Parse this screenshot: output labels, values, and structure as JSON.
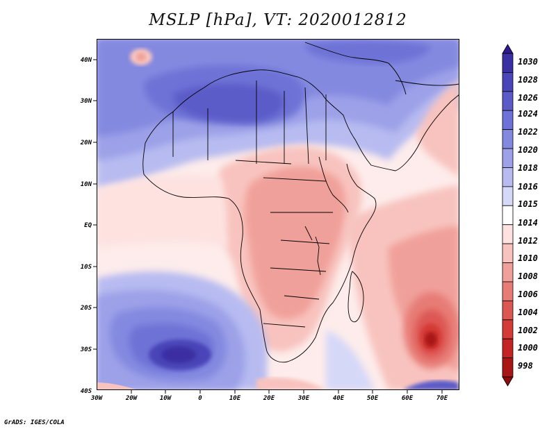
{
  "title": "MSLP [hPa], VT: 2020012812",
  "credit": "GrADS: IGES/COLA",
  "lat_labels": [
    "40N",
    "30N",
    "20N",
    "10N",
    "EQ",
    "10S",
    "20S",
    "30S",
    "40S"
  ],
  "lon_labels": [
    "30W",
    "20W",
    "10W",
    "0",
    "10E",
    "20E",
    "30E",
    "40E",
    "50E",
    "60E",
    "70E"
  ],
  "colorbar": {
    "labels": [
      "1030",
      "1028",
      "1026",
      "1024",
      "1022",
      "1020",
      "1018",
      "1016",
      "1015",
      "1014",
      "1012",
      "1010",
      "1008",
      "1006",
      "1004",
      "1002",
      "1000",
      "998"
    ],
    "colors": [
      "#2c1a8e",
      "#3a2fa3",
      "#4a45b8",
      "#5b5bc8",
      "#6e72d6",
      "#8489e0",
      "#9ca1e8",
      "#b7bbf0",
      "#d6d8f8",
      "#ffffff",
      "#fde2e0",
      "#f8c3be",
      "#f0a09a",
      "#e77b76",
      "#dd5752",
      "#d43a36",
      "#c42424",
      "#a81616",
      "#8a0c0c"
    ]
  },
  "chart_data": {
    "type": "heatmap",
    "title": "MSLP [hPa], VT: 2020012812",
    "variable": "Mean sea level pressure (hPa)",
    "valid_time": "2020012812",
    "lon_range": [
      "30W",
      "75E"
    ],
    "lat_range": [
      "40S",
      "45N"
    ],
    "levels": [
      998,
      1000,
      1002,
      1004,
      1006,
      1008,
      1010,
      1012,
      1014,
      1015,
      1016,
      1018,
      1020,
      1022,
      1024,
      1026,
      1028,
      1030
    ],
    "features": [
      {
        "type": "high",
        "location": "South Atlantic (~30S, 5W)",
        "value_hpa": 1026
      },
      {
        "type": "high",
        "location": "Sahara / North Africa (~30N, 10E)",
        "value_hpa": 1024
      },
      {
        "type": "low",
        "location": "Southwest Indian Ocean (~28S, 66E)",
        "value_hpa": 998
      },
      {
        "type": "trough",
        "location": "Central & Southern Africa",
        "value_hpa": 1008
      }
    ]
  }
}
